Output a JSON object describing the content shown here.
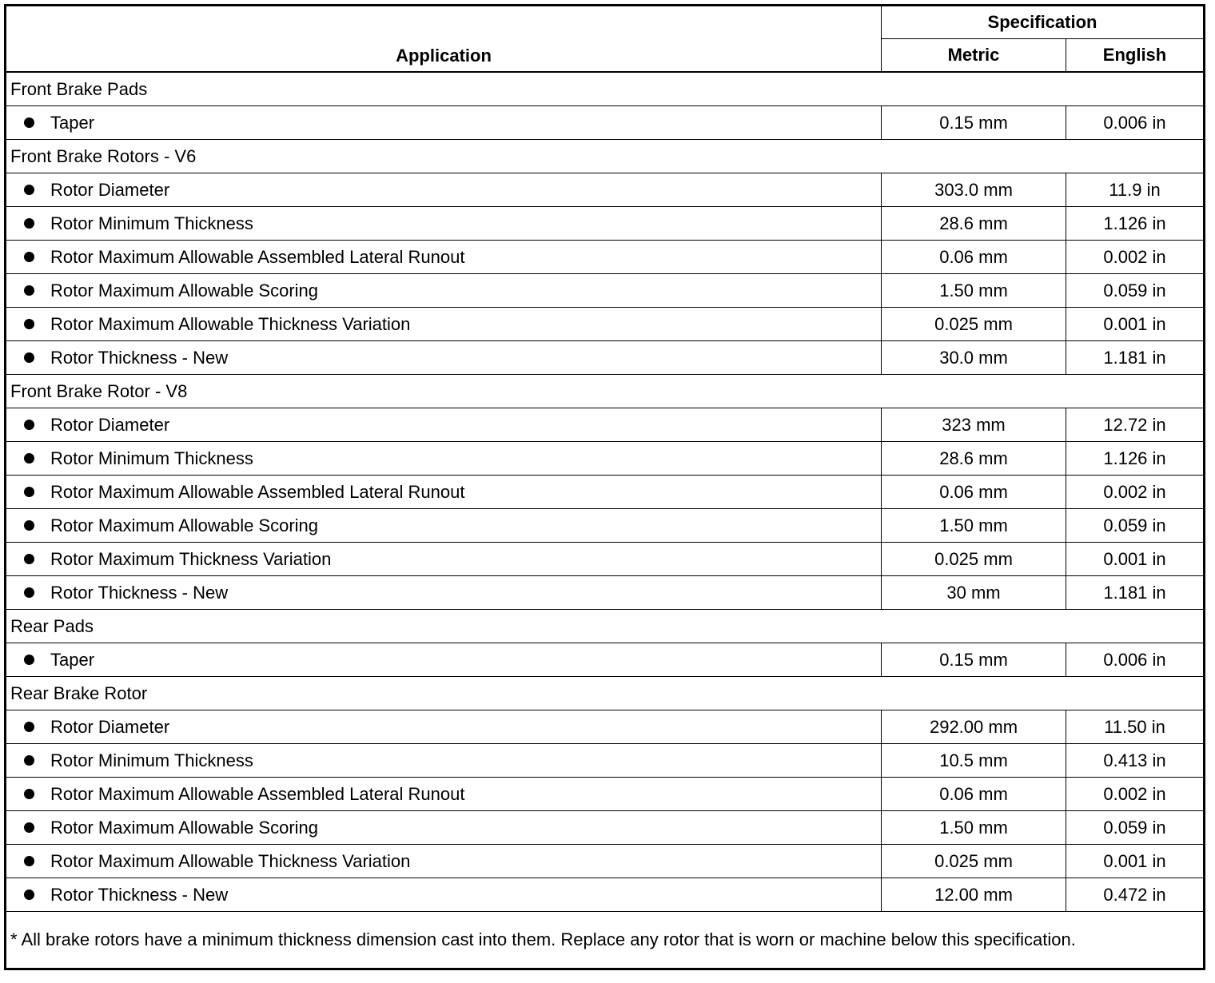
{
  "header": {
    "application": "Application",
    "specification": "Specification",
    "metric": "Metric",
    "english": "English"
  },
  "groups": [
    {
      "title": "Front Brake Pads",
      "items": [
        {
          "label": "Taper",
          "metric": "0.15 mm",
          "english": "0.006 in"
        }
      ]
    },
    {
      "title": "Front Brake Rotors - V6",
      "items": [
        {
          "label": "Rotor Diameter",
          "metric": "303.0 mm",
          "english": "11.9 in"
        },
        {
          "label": "Rotor Minimum Thickness",
          "metric": "28.6 mm",
          "english": "1.126 in"
        },
        {
          "label": "Rotor Maximum Allowable Assembled Lateral Runout",
          "metric": "0.06 mm",
          "english": "0.002 in"
        },
        {
          "label": "Rotor Maximum Allowable Scoring",
          "metric": "1.50 mm",
          "english": "0.059 in"
        },
        {
          "label": "Rotor Maximum Allowable Thickness Variation",
          "metric": "0.025 mm",
          "english": "0.001 in"
        },
        {
          "label": "Rotor Thickness - New",
          "metric": "30.0 mm",
          "english": "1.181 in"
        }
      ]
    },
    {
      "title": "Front Brake Rotor - V8",
      "items": [
        {
          "label": "Rotor Diameter",
          "metric": "323 mm",
          "english": "12.72 in"
        },
        {
          "label": "Rotor Minimum Thickness",
          "metric": "28.6 mm",
          "english": "1.126 in"
        },
        {
          "label": "Rotor Maximum Allowable Assembled Lateral Runout",
          "metric": "0.06 mm",
          "english": "0.002 in"
        },
        {
          "label": "Rotor Maximum Allowable Scoring",
          "metric": "1.50 mm",
          "english": "0.059 in"
        },
        {
          "label": "Rotor Maximum Thickness Variation",
          "metric": "0.025 mm",
          "english": "0.001 in"
        },
        {
          "label": "Rotor Thickness - New",
          "metric": "30 mm",
          "english": "1.181 in"
        }
      ]
    },
    {
      "title": "Rear Pads",
      "items": [
        {
          "label": "Taper",
          "metric": "0.15 mm",
          "english": "0.006 in"
        }
      ]
    },
    {
      "title": "Rear Brake Rotor",
      "items": [
        {
          "label": "Rotor Diameter",
          "metric": "292.00 mm",
          "english": "11.50 in"
        },
        {
          "label": "Rotor Minimum Thickness",
          "metric": "10.5 mm",
          "english": "0.413 in"
        },
        {
          "label": "Rotor Maximum Allowable Assembled Lateral Runout",
          "metric": "0.06 mm",
          "english": "0.002 in"
        },
        {
          "label": "Rotor Maximum Allowable Scoring",
          "metric": "1.50 mm",
          "english": "0.059 in"
        },
        {
          "label": "Rotor Maximum Allowable Thickness Variation",
          "metric": "0.025 mm",
          "english": "0.001 in"
        },
        {
          "label": "Rotor Thickness - New",
          "metric": "12.00 mm",
          "english": "0.472 in"
        }
      ]
    }
  ],
  "footnote": "* All brake rotors have a minimum thickness dimension cast into them. Replace any rotor that is worn or machine below this specification."
}
